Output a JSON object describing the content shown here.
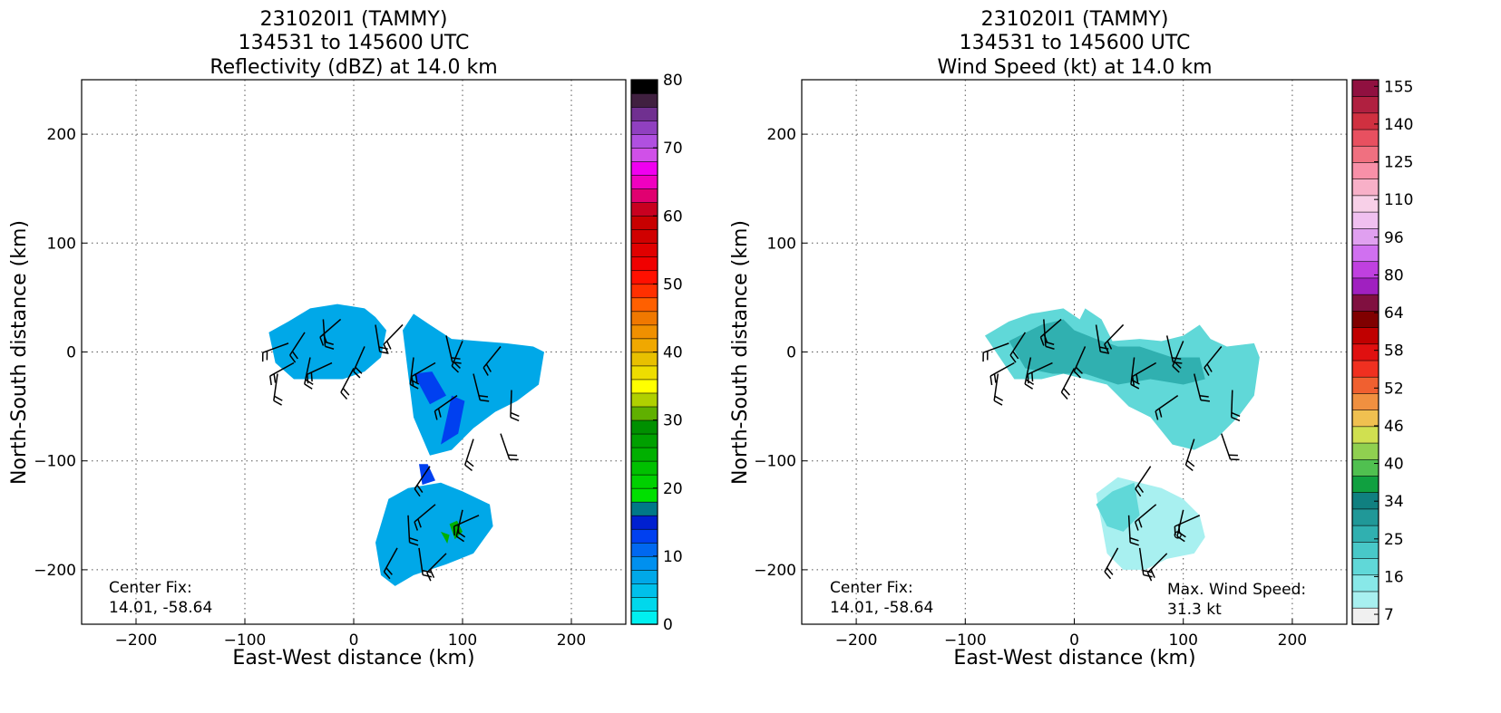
{
  "panels": [
    {
      "title_lines": [
        "231020I1 (TAMMY)",
        "134531 to 145600 UTC",
        "Reflectivity (dBZ) at 14.0 km"
      ],
      "xlabel": "East-West distance (km)",
      "ylabel": "North-South distance (km)",
      "center_fix_label": "Center Fix:",
      "center_fix_value": "14.01, -58.64",
      "colorbar_ticks": [
        "0",
        "10",
        "20",
        "30",
        "40",
        "50",
        "60",
        "70",
        "80"
      ]
    },
    {
      "title_lines": [
        "231020I1 (TAMMY)",
        "134531 to 145600 UTC",
        "Wind Speed (kt) at 14.0 km"
      ],
      "xlabel": "East-West distance (km)",
      "ylabel": "North-South distance (km)",
      "center_fix_label": "Center Fix:",
      "center_fix_value": "14.01, -58.64",
      "max_wind_label": "Max. Wind Speed:",
      "max_wind_value": "31.3 kt",
      "colorbar_ticks": [
        "7",
        "16",
        "25",
        "34",
        "40",
        "46",
        "52",
        "58",
        "64",
        "80",
        "96",
        "110",
        "125",
        "140",
        "155"
      ]
    }
  ],
  "chart_data": [
    {
      "type": "heatmap",
      "title": "231020I1 (TAMMY) 134531 to 145600 UTC Reflectivity (dBZ) at 14.0 km",
      "xlabel": "East-West distance (km)",
      "ylabel": "North-South distance (km)",
      "xlim": [
        -250,
        250
      ],
      "ylim": [
        -250,
        250
      ],
      "x_ticks": [
        -200,
        -100,
        0,
        100,
        200
      ],
      "y_ticks": [
        -200,
        -100,
        0,
        100,
        200
      ],
      "x_tick_labels": [
        "−200",
        "−100",
        "0",
        "100",
        "200"
      ],
      "y_tick_labels": [
        "−200",
        "−100",
        "0",
        "100",
        "200"
      ],
      "grid": true,
      "colorbar": {
        "range": [
          0,
          80
        ],
        "tick_values": [
          0,
          10,
          20,
          30,
          40,
          50,
          60,
          70,
          80
        ],
        "colors": [
          "#00f0f0",
          "#00d8ec",
          "#00c0ea",
          "#00a8e8",
          "#0090ef",
          "#0068f0",
          "#0040f0",
          "#0020d0",
          "#007888",
          "#00e000",
          "#00d000",
          "#00c000",
          "#00b000",
          "#00a000",
          "#009000",
          "#60b000",
          "#b0d000",
          "#ffff00",
          "#eedd00",
          "#e8c000",
          "#f0a800",
          "#f09000",
          "#f07800",
          "#ff6000",
          "#ff3000",
          "#ff1000",
          "#f00000",
          "#e00000",
          "#d00000",
          "#c80000",
          "#c80020",
          "#e00070",
          "#f000c0",
          "#f000f0",
          "#d050e8",
          "#b050e0",
          "#9040c0",
          "#703090",
          "#402040",
          "#000000"
        ]
      },
      "echo_regions": [
        {
          "x": [
            -78,
            -60,
            -40,
            -15,
            10,
            20,
            30,
            25,
            10,
            -10,
            -30,
            -55,
            -72,
            -78
          ],
          "y": [
            18,
            28,
            40,
            44,
            40,
            32,
            20,
            -5,
            -18,
            -25,
            -25,
            -25,
            -10,
            18
          ],
          "value": 6
        },
        {
          "x": [
            45,
            55,
            70,
            90,
            115,
            140,
            165,
            175,
            170,
            150,
            130,
            110,
            90,
            70,
            55,
            45
          ],
          "y": [
            20,
            35,
            25,
            12,
            10,
            8,
            5,
            0,
            -30,
            -45,
            -55,
            -70,
            -90,
            -95,
            -60,
            20
          ],
          "value": 6
        },
        {
          "x": [
            32,
            50,
            80,
            100,
            125,
            128,
            110,
            85,
            55,
            38,
            25,
            20,
            32
          ],
          "y": [
            -135,
            -125,
            -120,
            -128,
            -140,
            -160,
            -185,
            -195,
            -205,
            -215,
            -205,
            -175,
            -135
          ],
          "value": 7
        },
        {
          "x": [
            55,
            72,
            85,
            70,
            55
          ],
          "y": [
            -20,
            -18,
            -40,
            -48,
            -20
          ],
          "value": 12
        },
        {
          "x": [
            90,
            102,
            96,
            80,
            90
          ],
          "y": [
            -40,
            -45,
            -75,
            -85,
            -40
          ],
          "value": 12
        },
        {
          "x": [
            60,
            68,
            75,
            63,
            60
          ],
          "y": [
            -103,
            -103,
            -118,
            -122,
            -103
          ],
          "value": 12
        },
        {
          "x": [
            88,
            95,
            100,
            93,
            88
          ],
          "y": [
            -158,
            -155,
            -165,
            -172,
            -158
          ],
          "value": 25
        },
        {
          "x": [
            80,
            88,
            86,
            80
          ],
          "y": [
            -165,
            -168,
            -176,
            -165
          ],
          "value": 25
        }
      ]
    },
    {
      "type": "heatmap",
      "title": "231020I1 (TAMMY) 134531 to 145600 UTC Wind Speed (kt) at 14.0 km",
      "xlabel": "East-West distance (km)",
      "ylabel": "North-South distance (km)",
      "xlim": [
        -250,
        250
      ],
      "ylim": [
        -250,
        250
      ],
      "x_ticks": [
        -200,
        -100,
        0,
        100,
        200
      ],
      "y_ticks": [
        -200,
        -100,
        0,
        100,
        200
      ],
      "x_tick_labels": [
        "−200",
        "−100",
        "0",
        "100",
        "200"
      ],
      "y_tick_labels": [
        "−200",
        "−100",
        "0",
        "100",
        "200"
      ],
      "grid": true,
      "max_wind_speed_kt": 31.3,
      "colorbar": {
        "tick_values": [
          7,
          16,
          25,
          34,
          40,
          46,
          52,
          58,
          64,
          80,
          96,
          110,
          125,
          140,
          155
        ],
        "colors": [
          "#f0f0f0",
          "#a8f0f0",
          "#88e8e8",
          "#60d8d8",
          "#48c8c8",
          "#30b0b0",
          "#209898",
          "#108080",
          "#10a040",
          "#50c050",
          "#90d050",
          "#d0e050",
          "#f0c050",
          "#f09040",
          "#f06030",
          "#f03020",
          "#e01010",
          "#c00000",
          "#800000",
          "#801040",
          "#a020c0",
          "#c040e0",
          "#d070f0",
          "#e0a0f0",
          "#f0c0f0",
          "#f8d0e8",
          "#f8b0c8",
          "#f890a8",
          "#f07080",
          "#e85060",
          "#d03040",
          "#b02040",
          "#901040"
        ]
      },
      "wind_regions": [
        {
          "x": [
            -82,
            -60,
            -40,
            -10,
            5,
            10,
            25,
            35,
            60,
            80,
            100,
            115,
            125,
            140,
            165,
            170,
            165,
            150,
            130,
            110,
            90,
            70,
            50,
            30,
            10,
            -10,
            -30,
            -55,
            -82
          ],
          "y": [
            15,
            28,
            35,
            40,
            30,
            40,
            30,
            10,
            12,
            10,
            15,
            25,
            12,
            5,
            8,
            -5,
            -40,
            -60,
            -80,
            -90,
            -85,
            -60,
            -50,
            -30,
            -25,
            -20,
            -25,
            -25,
            15
          ],
          "value": 18
        },
        {
          "x": [
            -60,
            -30,
            -10,
            0,
            20,
            40,
            60,
            90,
            115,
            120,
            100,
            70,
            40,
            10,
            -20,
            -45,
            -60
          ],
          "y": [
            10,
            25,
            30,
            20,
            12,
            5,
            5,
            -5,
            -5,
            -25,
            -30,
            -25,
            -30,
            -20,
            -20,
            -15,
            10
          ],
          "value": 27
        },
        {
          "x": [
            20,
            40,
            60,
            80,
            100,
            115,
            120,
            110,
            85,
            65,
            45,
            30,
            20
          ],
          "y": [
            -130,
            -115,
            -120,
            -125,
            -135,
            -150,
            -170,
            -185,
            -190,
            -200,
            -200,
            -185,
            -130
          ],
          "value": 12
        },
        {
          "x": [
            60,
            80,
            100,
            115,
            105,
            85,
            65,
            60
          ],
          "y": [
            -140,
            -132,
            -138,
            -155,
            -170,
            -178,
            -165,
            -140
          ],
          "value": 6
        },
        {
          "x": [
            20,
            35,
            55,
            60,
            45,
            30,
            20
          ],
          "y": [
            -140,
            -128,
            -120,
            -150,
            -165,
            -160,
            -140
          ],
          "value": 22
        }
      ]
    }
  ],
  "colors": {
    "reflectivity_fill": "#00c8f0",
    "reflectivity_core": "#0050e8",
    "wind_fill": "#5ccccc",
    "wind_core": "#2a9a9a"
  }
}
